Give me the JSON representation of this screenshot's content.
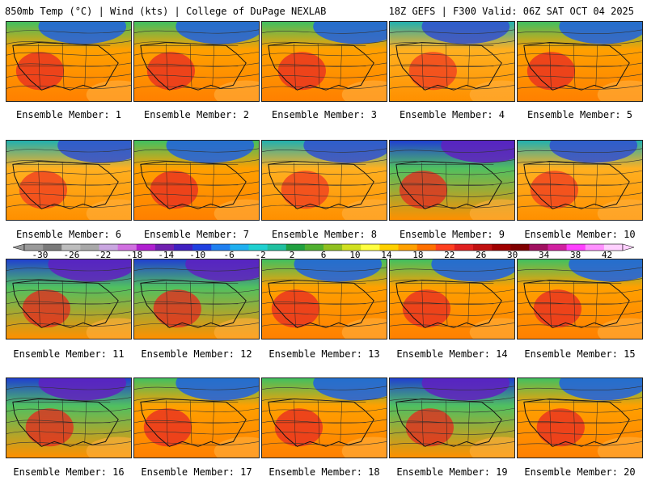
{
  "header": {
    "left": "850mb Temp (°C) | Wind (kts) | College of DuPage NEXLAB",
    "right": "18Z GEFS | F300 Valid: 06Z SAT OCT 04 2025"
  },
  "members": [
    {
      "label": "Ensemble Member: 1",
      "palette": "warm"
    },
    {
      "label": "Ensemble Member: 2",
      "palette": "warm"
    },
    {
      "label": "Ensemble Member: 3",
      "palette": "warm"
    },
    {
      "label": "Ensemble Member: 4",
      "palette": "mild"
    },
    {
      "label": "Ensemble Member: 5",
      "palette": "warm"
    },
    {
      "label": "Ensemble Member: 6",
      "palette": "mild"
    },
    {
      "label": "Ensemble Member: 7",
      "palette": "warm"
    },
    {
      "label": "Ensemble Member: 8",
      "palette": "mild"
    },
    {
      "label": "Ensemble Member: 9",
      "palette": "cold"
    },
    {
      "label": "Ensemble Member: 10",
      "palette": "mild"
    },
    {
      "label": "Ensemble Member: 11",
      "palette": "cold"
    },
    {
      "label": "Ensemble Member: 12",
      "palette": "cold"
    },
    {
      "label": "Ensemble Member: 13",
      "palette": "warm"
    },
    {
      "label": "Ensemble Member: 14",
      "palette": "warm"
    },
    {
      "label": "Ensemble Member: 15",
      "palette": "warm"
    },
    {
      "label": "Ensemble Member: 16",
      "palette": "cold"
    },
    {
      "label": "Ensemble Member: 17",
      "palette": "warm"
    },
    {
      "label": "Ensemble Member: 18",
      "palette": "warm"
    },
    {
      "label": "Ensemble Member: 19",
      "palette": "cold"
    },
    {
      "label": "Ensemble Member: 20",
      "palette": "warm"
    }
  ],
  "colorbar": {
    "ticks": [
      "-30",
      "-26",
      "-22",
      "-18",
      "-14",
      "-10",
      "-6",
      "-2",
      "2",
      "6",
      "10",
      "14",
      "18",
      "22",
      "26",
      "30",
      "34",
      "38",
      "42"
    ],
    "colors": [
      "#9a9a9a",
      "#7a7a7a",
      "#bdbdbd",
      "#a8a8a8",
      "#c9a6e0",
      "#d070e0",
      "#b020d0",
      "#7020b0",
      "#4020c0",
      "#2040e0",
      "#2080f0",
      "#20b0f0",
      "#20d0d0",
      "#20c0a0",
      "#20a040",
      "#50b030",
      "#90c020",
      "#d0e020",
      "#ffff40",
      "#ffd000",
      "#ffa000",
      "#ff7000",
      "#ff4020",
      "#e02020",
      "#c01010",
      "#a00000",
      "#800000",
      "#a01060",
      "#d020a0",
      "#ff40ff",
      "#ff90ff",
      "#ffd0ff"
    ]
  },
  "palettes": {
    "warm": {
      "north": "#40c060",
      "mid": "#ffa000",
      "south": "#ff8000",
      "core": "#e83020",
      "cold": "#2060e0"
    },
    "mild": {
      "north": "#20b0b0",
      "mid": "#ffb020",
      "south": "#ff9000",
      "core": "#f04020",
      "cold": "#3050d0"
    },
    "cold": {
      "north": "#2040d0",
      "mid": "#50c060",
      "south": "#ff9000",
      "core": "#e03020",
      "cold": "#6020c0"
    }
  }
}
